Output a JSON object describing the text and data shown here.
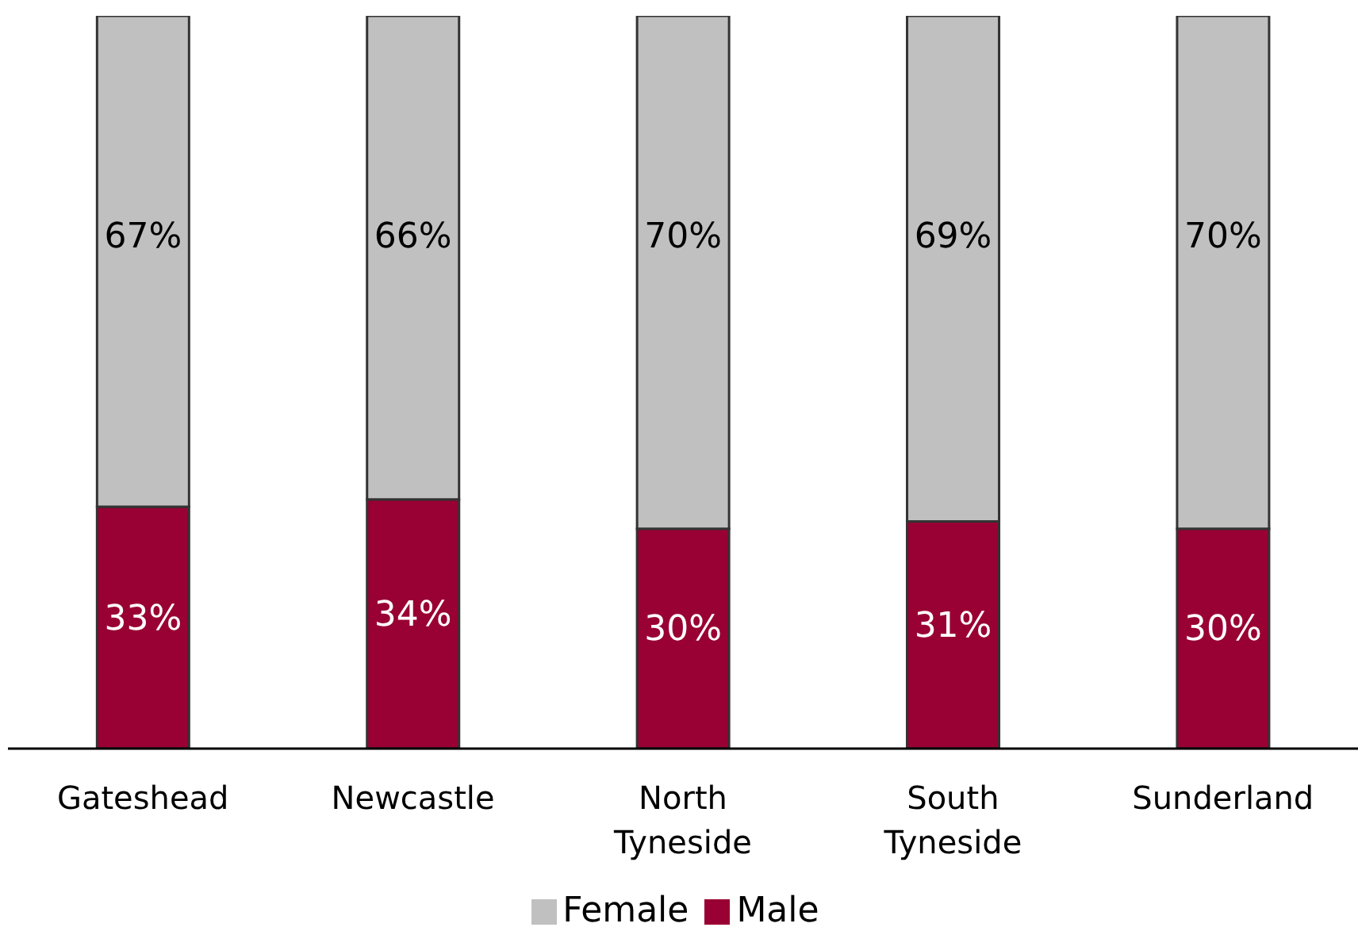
{
  "chart_data": {
    "type": "bar",
    "stacked": true,
    "categories": [
      "Gateshead",
      "Newcastle",
      "North Tyneside",
      "South Tyneside",
      "Sunderland"
    ],
    "ylim": [
      0,
      100
    ],
    "series": [
      {
        "name": "Male",
        "color": "#990033",
        "values": [
          33,
          34,
          30,
          31,
          30
        ],
        "value_labels": [
          "33%",
          "34%",
          "30%",
          "31%",
          "30%"
        ]
      },
      {
        "name": "Female",
        "color": "#c0c0c0",
        "values": [
          67,
          66,
          70,
          69,
          70
        ],
        "value_labels": [
          "67%",
          "66%",
          "70%",
          "69%",
          "70%"
        ]
      }
    ],
    "legend": "bottom"
  }
}
